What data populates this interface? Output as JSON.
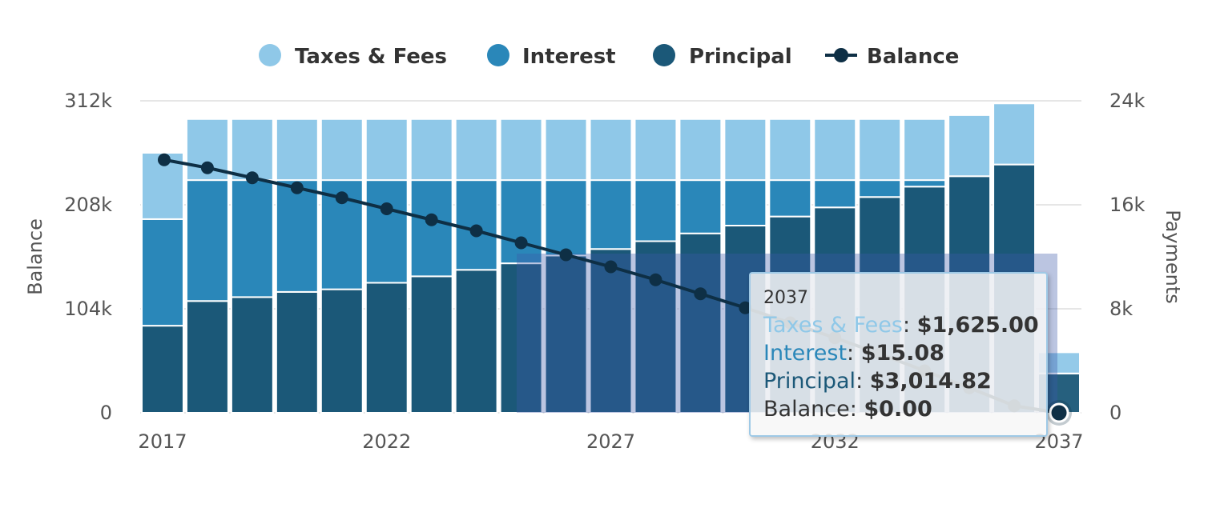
{
  "chart_data": {
    "type": "bar",
    "stacked": true,
    "categories": [
      "2017",
      "2018",
      "2019",
      "2020",
      "2021",
      "2022",
      "2023",
      "2024",
      "2025",
      "2026",
      "2027",
      "2028",
      "2029",
      "2030",
      "2031",
      "2032",
      "2033",
      "2034",
      "2035",
      "2036",
      "2037"
    ],
    "series": [
      {
        "name": "Principal",
        "axis": "Payments",
        "color": "#1b5878",
        "values": [
          6700,
          8600,
          8900,
          9300,
          9500,
          10000,
          10500,
          11000,
          11500,
          12100,
          12600,
          13200,
          13800,
          14400,
          15100,
          15800,
          16600,
          17400,
          18200,
          19100,
          3014.82
        ]
      },
      {
        "name": "Interest",
        "axis": "Payments",
        "color": "#2a87b9",
        "values": [
          8200,
          9300,
          9000,
          8600,
          8400,
          7900,
          7400,
          6900,
          6400,
          5800,
          5300,
          4700,
          4100,
          3500,
          2800,
          2100,
          1300,
          500,
          0,
          0,
          15.08
        ]
      },
      {
        "name": "Taxes & Fees",
        "axis": "Payments",
        "color": "#8fc8e8",
        "values": [
          5100,
          4700,
          4700,
          4700,
          4700,
          4700,
          4700,
          4700,
          4700,
          4700,
          4700,
          4700,
          4700,
          4700,
          4700,
          4700,
          4700,
          4700,
          4700,
          4700,
          1625.0
        ]
      },
      {
        "name": "Balance",
        "axis": "Balance",
        "type": "line",
        "color": "#0e2f45",
        "values": [
          253000,
          245000,
          235000,
          225000,
          215000,
          204000,
          193000,
          182000,
          170000,
          158000,
          146000,
          133000,
          119000,
          105000,
          90000,
          75000,
          59000,
          42000,
          25000,
          7000,
          0
        ]
      }
    ],
    "y_left": {
      "title": "Balance",
      "ticks": [
        "0",
        "104k",
        "208k",
        "312k"
      ],
      "ylim": [
        0,
        312000
      ]
    },
    "y_right": {
      "title": "Payments",
      "ticks": [
        "0",
        "8k",
        "16k",
        "24k"
      ],
      "ylim": [
        0,
        24000
      ]
    },
    "x_ticks": [
      "2017",
      "2022",
      "2027",
      "2032",
      "2037"
    ],
    "legend": {
      "position": "top-center",
      "items": [
        {
          "label": "Taxes & Fees",
          "symbol": "circle",
          "color": "#8fc8e8"
        },
        {
          "label": "Interest",
          "symbol": "circle",
          "color": "#2a87b9"
        },
        {
          "label": "Principal",
          "symbol": "circle",
          "color": "#1b5878"
        },
        {
          "label": "Balance",
          "symbol": "line-marker",
          "color": "#0e2f45"
        }
      ]
    },
    "grid": true,
    "hovered_category": "2037"
  },
  "tooltip": {
    "header": "2037",
    "rows": [
      {
        "label": "Taxes & Fees",
        "sep": ": ",
        "value": "$1,625.00",
        "color": "#8fc8e8"
      },
      {
        "label": "Interest",
        "sep": ": ",
        "value": "$15.08",
        "color": "#2a87b9"
      },
      {
        "label": "Principal",
        "sep": ": ",
        "value": "$3,014.82",
        "color": "#1b5878"
      },
      {
        "label": "Balance",
        "sep": ": ",
        "value": "$0.00",
        "color": "#333333"
      }
    ]
  }
}
